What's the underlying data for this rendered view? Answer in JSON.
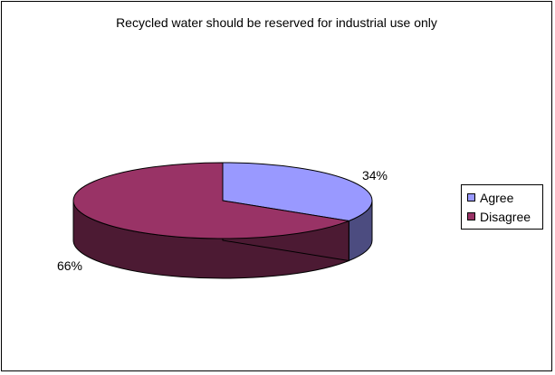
{
  "chart_data": {
    "type": "pie",
    "title": "Recycled water should be reserved for industrial use only",
    "categories": [
      "Agree",
      "Disagree"
    ],
    "values": [
      34,
      66
    ],
    "labels": [
      "34%",
      "66%"
    ],
    "colors": [
      "#9999ff",
      "#993366"
    ],
    "side_colors": [
      "#4c4c80",
      "#4c1a33"
    ],
    "legend_position": "right",
    "style": "3d"
  }
}
